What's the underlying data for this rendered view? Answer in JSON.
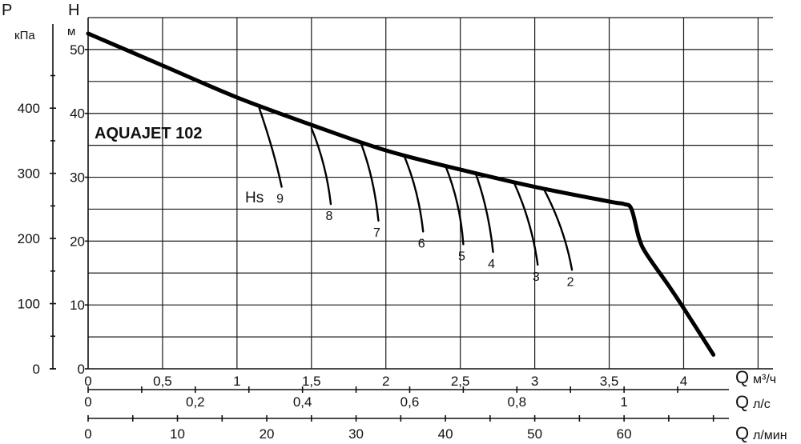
{
  "chart_data": {
    "type": "line",
    "title": "AQUAJET 102",
    "axes": {
      "left_pressure": {
        "symbol": "P",
        "unit": "кПа",
        "ticks": [
          "0",
          "100",
          "200",
          "300",
          "400"
        ]
      },
      "left_head": {
        "symbol": "H",
        "unit": "м",
        "ticks": [
          "0",
          "10",
          "20",
          "30",
          "40",
          "50"
        ]
      },
      "bottom_m3h": {
        "symbol": "Q",
        "unit": "м³/ч",
        "ticks": [
          "0",
          "0,5",
          "1",
          "1,5",
          "2",
          "2,5",
          "3",
          "3,5",
          "4"
        ]
      },
      "bottom_ls": {
        "symbol": "Q",
        "unit": "л/с",
        "ticks": [
          "0",
          "0,2",
          "0,4",
          "0,6",
          "0,8",
          "1"
        ]
      },
      "bottom_lmin": {
        "symbol": "Q",
        "unit": "л/мин",
        "ticks": [
          "0",
          "10",
          "20",
          "30",
          "40",
          "50",
          "60"
        ]
      }
    },
    "xlim": [
      0,
      4.6
    ],
    "ylim": [
      0,
      52.5
    ],
    "grid": true,
    "series": [
      {
        "x": [
          0,
          0.5,
          1,
          1.5,
          2,
          2.5,
          3,
          3.5,
          3.6,
          3.65,
          3.7,
          3.75,
          3.9,
          4,
          4.2
        ],
        "y": [
          52.5,
          47.5,
          42.5,
          38.2,
          34.2,
          31.2,
          28.5,
          26.2,
          25.8,
          25.0,
          20.5,
          18.0,
          13.0,
          9.5,
          2.2
        ]
      }
    ],
    "suction_label": "Hs",
    "suction_curves": [
      {
        "label": "9",
        "x": [
          1.15,
          1.25,
          1.3
        ],
        "y": [
          40.8,
          34,
          28.5
        ]
      },
      {
        "label": "8",
        "x": [
          1.5,
          1.6,
          1.63
        ],
        "y": [
          37.7,
          32,
          25.8
        ]
      },
      {
        "label": "7",
        "x": [
          1.83,
          1.92,
          1.95
        ],
        "y": [
          35.5,
          30,
          23.2
        ]
      },
      {
        "label": "6",
        "x": [
          2.12,
          2.22,
          2.25
        ],
        "y": [
          33.5,
          28,
          21.5
        ]
      },
      {
        "label": "5",
        "x": [
          2.4,
          2.5,
          2.52
        ],
        "y": [
          31.8,
          26,
          19.5
        ]
      },
      {
        "label": "4",
        "x": [
          2.6,
          2.69,
          2.72
        ],
        "y": [
          30.8,
          25,
          18.3
        ]
      },
      {
        "label": "3",
        "x": [
          2.86,
          2.98,
          3.02
        ],
        "y": [
          29.2,
          23,
          16.3
        ]
      },
      {
        "label": "2",
        "x": [
          3.06,
          3.2,
          3.25
        ],
        "y": [
          28.2,
          22,
          15.5
        ]
      }
    ]
  }
}
